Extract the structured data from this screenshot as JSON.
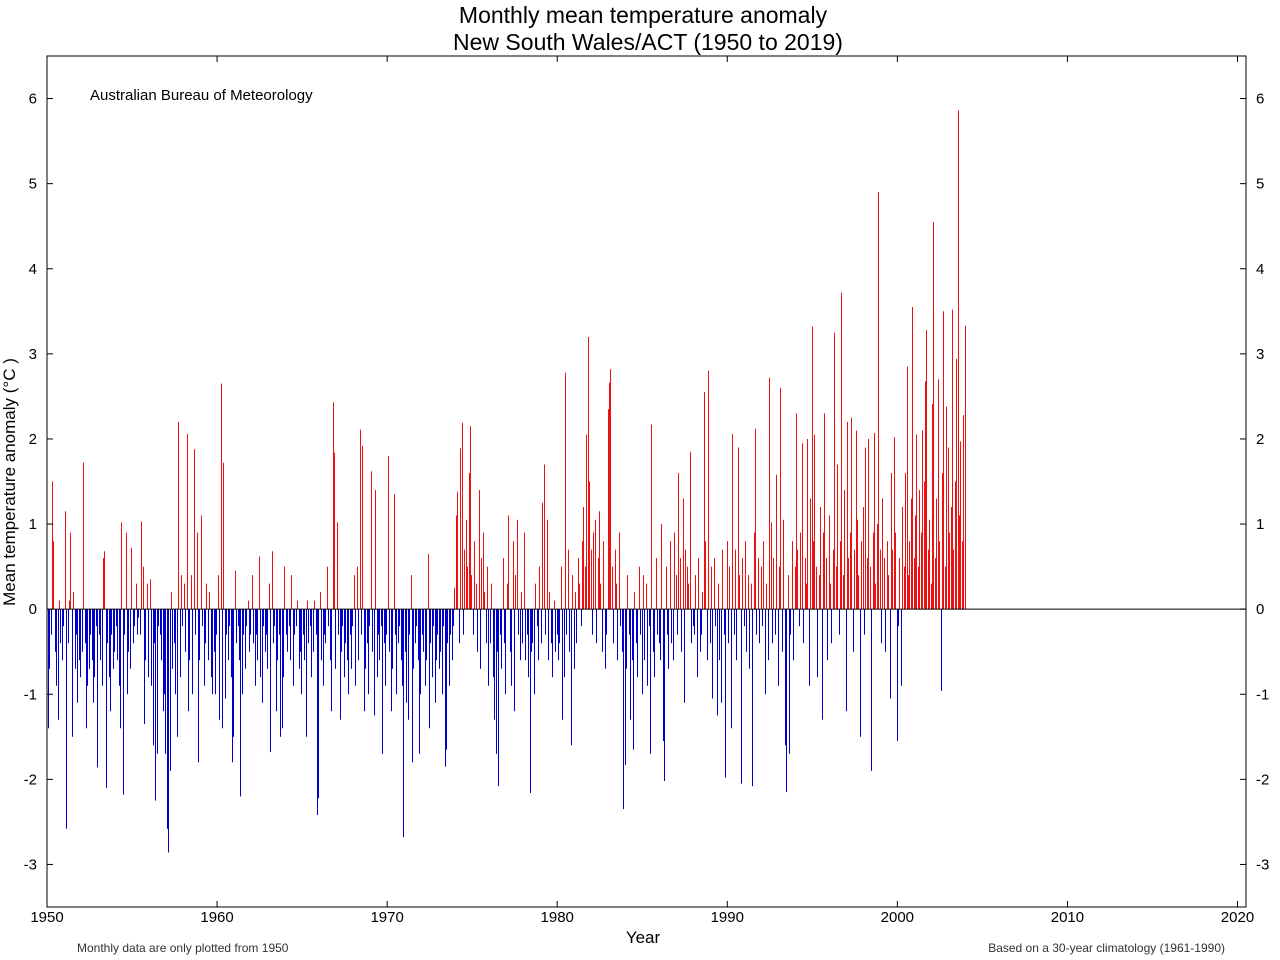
{
  "chart_data": {
    "type": "bar",
    "title": "Monthly mean temperature anomaly",
    "subtitle": "New South Wales/ACT (1950 to 2019)",
    "xlabel": "Year",
    "ylabel": "Mean temperature anomaly (°C )",
    "xlim": [
      1950,
      2020.5
    ],
    "ylim": [
      -3.5,
      6.5
    ],
    "x_ticks": [
      1950,
      1960,
      1970,
      1980,
      1990,
      2000,
      2010,
      2020
    ],
    "y_ticks": [
      -3,
      -2,
      -1,
      0,
      1,
      2,
      3,
      4,
      5,
      6
    ],
    "grid": false,
    "annotation": "Australian Bureau of Meteorology",
    "footnote_left": "Monthly data are only plotted from 1950",
    "footnote_right": "Based on a 30-year climatology (1961-1990)",
    "colors": {
      "positive": "#ee1111",
      "negative": "#0000cc"
    },
    "series": [
      {
        "values": [
          -1.4,
          -0.7,
          -0.3,
          1.5,
          0.8,
          -0.5,
          -0.9,
          -1.3,
          0.1,
          -0.4,
          -0.6,
          -0.2,
          1.15,
          -2.58,
          -0.4,
          0.1,
          0.9,
          -1.5,
          0.2,
          -0.7,
          -0.3,
          -1.1,
          -0.6,
          -0.8,
          -0.5,
          1.72,
          -0.4,
          -1.4,
          -0.9,
          -0.7,
          -0.3,
          -0.6,
          -1.1,
          -0.8,
          -0.2,
          -1.86,
          -0.3,
          -0.6,
          -0.9,
          0.6,
          0.68,
          -2.1,
          -0.4,
          -0.8,
          -1.2,
          -0.3,
          -0.7,
          -0.5,
          -0.2,
          -0.6,
          -0.9,
          -1.4,
          1.02,
          -2.18,
          -0.3,
          0.9,
          -1.0,
          -0.5,
          -0.7,
          0.72,
          -0.4,
          -0.2,
          0.3,
          -0.3,
          -0.1,
          -0.3,
          1.03,
          0.5,
          -1.35,
          -0.6,
          0.3,
          -0.8,
          0.35,
          -0.9,
          -1.6,
          -0.4,
          -2.25,
          -1.7,
          -0.2,
          -0.3,
          -0.6,
          -1.2,
          -1.0,
          -1.7,
          -2.58,
          -2.86,
          -1.9,
          0.2,
          -0.7,
          -0.4,
          -1.0,
          -1.5,
          2.2,
          -0.8,
          0.4,
          -0.2,
          0.3,
          -0.5,
          2.06,
          -1.2,
          -0.6,
          0.4,
          -1.0,
          1.88,
          -0.3,
          0.9,
          -1.8,
          -0.6,
          1.1,
          -0.2,
          -0.9,
          -0.4,
          0.3,
          -0.6,
          0.2,
          -0.8,
          -1.0,
          -0.5,
          -1.0,
          -0.3,
          0.4,
          -1.3,
          2.65,
          -1.4,
          1.72,
          -1.05,
          -0.3,
          -0.6,
          -0.2,
          -0.8,
          -1.8,
          -1.5,
          0.45,
          -0.4,
          -0.2,
          -0.6,
          -2.2,
          -1.0,
          -0.3,
          -0.7,
          -0.2,
          0.1,
          -0.5,
          -0.3,
          0.4,
          -0.4,
          -0.9,
          -0.3,
          -0.6,
          0.62,
          -0.8,
          -1.1,
          -0.2,
          -0.5,
          -0.3,
          -0.7,
          0.3,
          -1.68,
          0.68,
          -0.4,
          -0.2,
          -1.2,
          -0.6,
          -0.3,
          -1.5,
          -1.4,
          -0.8,
          0.5,
          -0.3,
          -0.5,
          -0.2,
          -0.6,
          0.4,
          -0.9,
          -0.3,
          -0.2,
          0.1,
          -0.7,
          -0.5,
          -1.0,
          -0.3,
          -0.6,
          -1.5,
          0.1,
          -0.4,
          -0.2,
          -0.8,
          -0.5,
          0.1,
          -0.3,
          -2.42,
          -2.22,
          0.2,
          -0.6,
          -0.9,
          -0.3,
          -0.4,
          0.5,
          -0.2,
          -0.6,
          -1.2,
          2.43,
          1.84,
          -0.7,
          1.02,
          -0.3,
          -1.3,
          -0.5,
          -0.2,
          -0.8,
          -0.4,
          -0.6,
          -1.0,
          -0.3,
          -0.7,
          -0.2,
          0.4,
          -0.9,
          0.5,
          -0.6,
          2.11,
          -0.3,
          1.92,
          -1.2,
          -0.7,
          -0.4,
          -1.0,
          -0.2,
          1.62,
          -0.5,
          -1.25,
          1.4,
          -0.8,
          -0.3,
          -0.6,
          -0.2,
          -1.7,
          -0.4,
          -0.9,
          -0.3,
          1.8,
          -0.5,
          -1.2,
          -0.7,
          1.35,
          -0.3,
          -1.0,
          -0.4,
          -0.2,
          -0.6,
          -0.9,
          -2.68,
          -0.5,
          -1.1,
          -1.3,
          -0.3,
          0.4,
          -1.8,
          -0.7,
          -0.4,
          -0.2,
          -0.6,
          -1.7,
          -1.0,
          -0.3,
          -0.5,
          -0.9,
          -0.6,
          0.65,
          -1.4,
          -0.4,
          -0.8,
          -0.2,
          -1.1,
          -0.6,
          -0.3,
          -0.7,
          -0.5,
          -1.0,
          -0.2,
          -1.85,
          -1.65,
          -0.4,
          -0.9,
          -0.3,
          -0.6,
          -0.2,
          0.25,
          1.1,
          1.38,
          -0.4,
          1.89,
          2.19,
          -0.3,
          0.7,
          1.05,
          0.5,
          1.6,
          2.15,
          0.4,
          -0.3,
          0.8,
          0.3,
          -0.5,
          1.4,
          -0.7,
          0.6,
          0.9,
          0.2,
          -0.4,
          0.5,
          -0.9,
          -0.4,
          0.3,
          -0.8,
          -1.3,
          -1.7,
          -0.5,
          -2.08,
          -0.3,
          -0.7,
          0.6,
          -0.4,
          -1.0,
          0.3,
          1.1,
          -0.5,
          -0.9,
          0.8,
          -1.2,
          0.4,
          1.05,
          -0.3,
          -0.6,
          0.2,
          -0.4,
          0.9,
          -0.6,
          -0.3,
          -0.8,
          -2.16,
          -0.5,
          -0.4,
          -1.0,
          0.3,
          -0.2,
          -0.6,
          0.5,
          -0.4,
          1.25,
          1.7,
          -0.3,
          1.05,
          -0.6,
          0.2,
          -0.4,
          -0.8,
          0.1,
          -0.5,
          -0.3,
          -0.6,
          -0.4,
          0.5,
          -1.3,
          -0.8,
          2.78,
          -0.3,
          0.7,
          -0.5,
          -1.6,
          0.4,
          -0.7,
          0.2,
          -0.4,
          0.6,
          0.3,
          -0.2,
          0.8,
          1.2,
          0.5,
          2.05,
          3.2,
          1.5,
          0.7,
          -0.3,
          0.9,
          1.05,
          -0.4,
          0.6,
          1.15,
          0.3,
          -0.5,
          0.8,
          -0.7,
          -0.3,
          2.35,
          2.66,
          2.82,
          0.5,
          -0.4,
          0.7,
          0.3,
          -0.6,
          0.9,
          -0.2,
          -0.5,
          -2.35,
          -1.83,
          -0.7,
          0.4,
          -0.3,
          -1.3,
          -0.6,
          -1.65,
          0.2,
          -0.4,
          -0.8,
          0.5,
          -0.3,
          -1.0,
          0.4,
          -0.6,
          0.3,
          -0.9,
          -0.2,
          -1.7,
          2.17,
          -0.5,
          -0.8,
          0.6,
          -0.3,
          -0.4,
          -0.6,
          1.0,
          -1.55,
          -2.02,
          0.5,
          -0.3,
          -0.7,
          0.8,
          -0.4,
          -0.6,
          0.9,
          0.4,
          -0.3,
          1.6,
          0.6,
          -0.5,
          1.3,
          -1.1,
          0.7,
          0.5,
          0.3,
          1.85,
          -0.4,
          -0.2,
          -0.3,
          0.4,
          -0.8,
          0.6,
          -0.5,
          -0.3,
          0.2,
          2.55,
          0.8,
          -0.6,
          2.8,
          -0.4,
          0.5,
          -1.05,
          0.6,
          -0.2,
          -1.25,
          0.3,
          -0.6,
          -1.1,
          0.7,
          -0.3,
          -1.98,
          0.8,
          -0.4,
          0.5,
          -1.4,
          2.06,
          -0.3,
          0.7,
          -0.6,
          1.9,
          0.4,
          -2.05,
          0.6,
          -0.2,
          0.8,
          -0.5,
          0.4,
          -0.7,
          0.3,
          -2.08,
          0.9,
          2.12,
          -0.3,
          0.6,
          -0.4,
          0.5,
          -0.2,
          0.8,
          -1.0,
          0.3,
          -0.6,
          2.72,
          1.02,
          -0.4,
          0.6,
          -0.3,
          1.58,
          -0.9,
          0.5,
          2.6,
          -0.5,
          1.05,
          -1.6,
          -2.15,
          0.4,
          -1.7,
          -0.3,
          0.8,
          -0.6,
          0.5,
          2.3,
          0.7,
          -0.2,
          0.9,
          1.95,
          -0.4,
          0.6,
          0.3,
          2.0,
          -0.9,
          1.3,
          3.32,
          0.8,
          2.05,
          0.5,
          -0.8,
          0.4,
          1.2,
          -1.3,
          0.9,
          2.3,
          0.6,
          -0.6,
          1.1,
          0.3,
          -0.4,
          0.7,
          3.25,
          0.5,
          1.7,
          -0.3,
          0.8,
          3.72,
          0.4,
          1.4,
          -1.2,
          2.2,
          0.6,
          0.9,
          2.25,
          -0.5,
          0.7,
          2.1,
          1.05,
          0.4,
          -1.5,
          0.8,
          1.2,
          -0.3,
          1.9,
          0.6,
          2.0,
          0.5,
          -1.9,
          0.9,
          2.07,
          0.3,
          1.0,
          4.9,
          0.7,
          -0.4,
          1.3,
          0.6,
          -0.5,
          0.8,
          0.4,
          -1.05,
          1.6,
          0.7,
          2.02,
          0.9,
          -1.55,
          -0.2,
          0.6,
          -0.9,
          1.2,
          0.5,
          1.6,
          2.85,
          0.4,
          0.8,
          1.3,
          3.55,
          0.6,
          1.1,
          2.05,
          0.5,
          1.4,
          0.9,
          2.1,
          1.5,
          2.68,
          3.28,
          0.7,
          1.05,
          0.3,
          2.41,
          4.55,
          0.6,
          1.3,
          2.7,
          0.8,
          -0.96,
          1.6,
          3.5,
          0.5,
          2.38,
          1.9,
          0.9,
          1.2,
          3.52,
          0.7,
          1.5,
          2.94,
          5.86,
          1.1,
          1.97,
          0.8,
          2.28,
          3.33
        ]
      }
    ]
  }
}
